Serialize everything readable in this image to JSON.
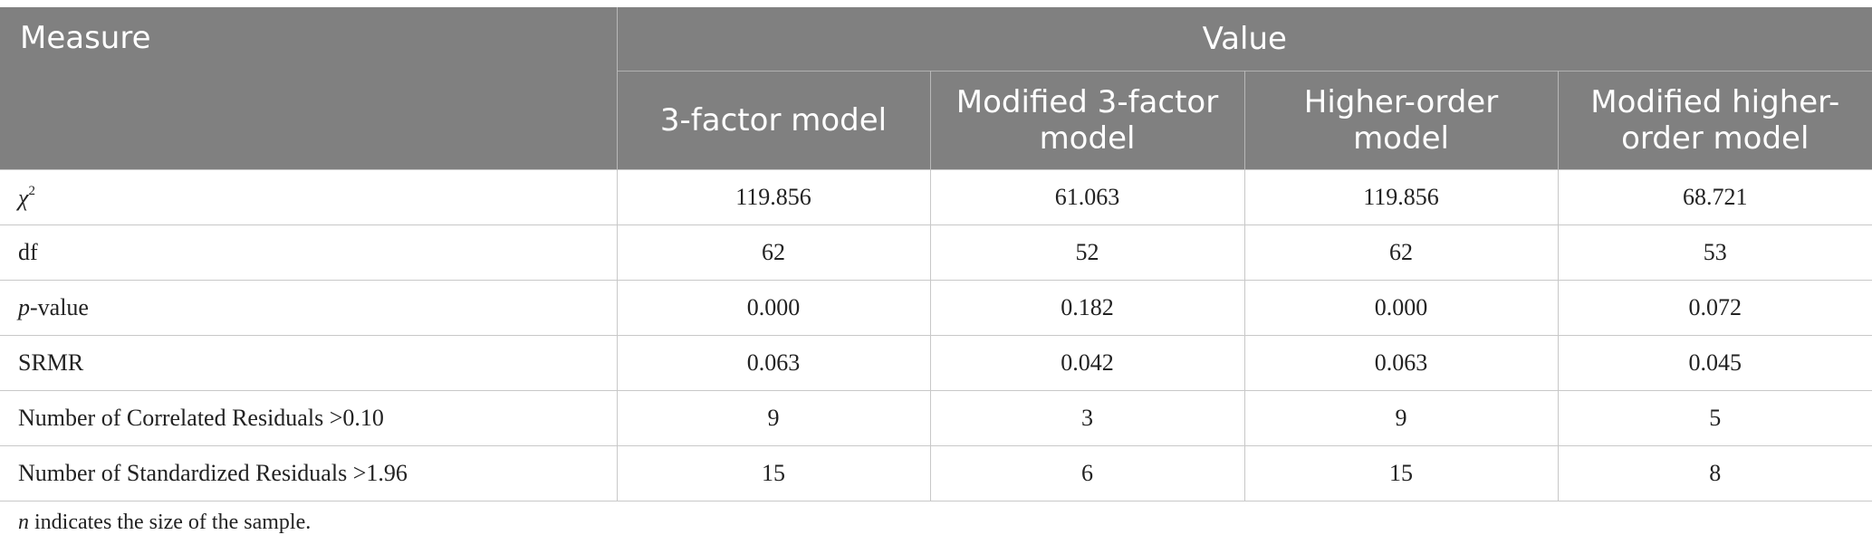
{
  "header": {
    "measure": "Measure",
    "value": "Value",
    "models": [
      "3-factor model",
      "Modified 3-factor model",
      "Higher-order model",
      "Modified higher-order model"
    ]
  },
  "rows": [
    {
      "label_symbol": "χ",
      "label_sup": "2",
      "label_rest": "",
      "values": [
        "119.856",
        "61.063",
        "119.856",
        "68.721"
      ]
    },
    {
      "label_symbol": "",
      "label_sup": "",
      "label_rest": "df",
      "values": [
        "62",
        "52",
        "62",
        "53"
      ]
    },
    {
      "label_symbol": "p",
      "label_sup": "",
      "label_rest": "-value",
      "values": [
        "0.000",
        "0.182",
        "0.000",
        "0.072"
      ]
    },
    {
      "label_symbol": "",
      "label_sup": "",
      "label_rest": "SRMR",
      "values": [
        "0.063",
        "0.042",
        "0.063",
        "0.045"
      ]
    },
    {
      "label_symbol": "",
      "label_sup": "",
      "label_rest": "Number of Correlated Residuals >0.10",
      "values": [
        "9",
        "3",
        "9",
        "5"
      ]
    },
    {
      "label_symbol": "",
      "label_sup": "",
      "label_rest": "Number of Standardized Residuals >1.96",
      "values": [
        "15",
        "6",
        "15",
        "8"
      ]
    }
  ],
  "footnote": {
    "symbol": "n",
    "text": " indicates the size of the sample."
  }
}
